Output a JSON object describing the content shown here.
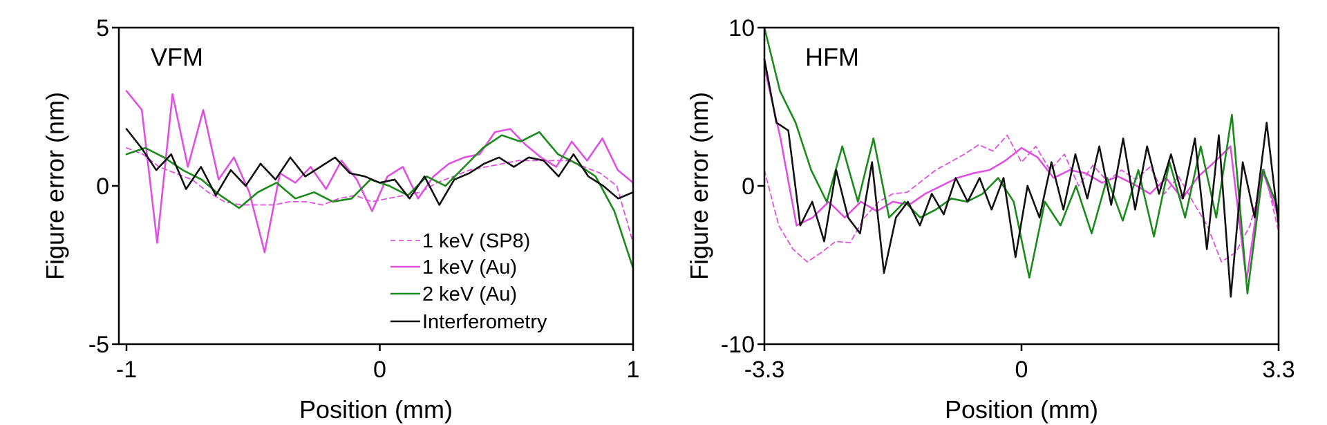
{
  "chart_data": [
    {
      "type": "line",
      "panel_label": "VFM",
      "xlabel": "Position (mm)",
      "ylabel": "Figure error (nm)",
      "xlim": [
        -1.03,
        1.0
      ],
      "ylim": [
        -5,
        5
      ],
      "xticks": [
        {
          "value": -1,
          "label": "-1"
        },
        {
          "value": 0,
          "label": "0"
        },
        {
          "value": 1,
          "label": "1"
        }
      ],
      "yticks": [
        {
          "value": 5,
          "label": "5"
        },
        {
          "value": 0,
          "label": "0"
        },
        {
          "value": -5,
          "label": "-5"
        }
      ],
      "legend_position": "bottom-right",
      "series": [
        {
          "name": "1 keV (SP8)",
          "color": "#e050e0",
          "dash": true,
          "width": 1.8,
          "x_start": -1.0,
          "x_end": 1.0,
          "values": [
            1.2,
            1.0,
            0.6,
            0.4,
            0.2,
            -0.2,
            -0.5,
            -0.6,
            -0.6,
            -0.6,
            -0.5,
            -0.5,
            -0.6,
            -0.4,
            -0.3,
            -0.5,
            -0.4,
            -0.3,
            -0.2,
            0.1,
            0.3,
            0.5,
            0.6,
            0.7,
            0.8,
            0.8,
            0.8,
            0.8,
            0.6,
            0.4,
            0.0,
            -1.8
          ]
        },
        {
          "name": "1 keV (Au)",
          "color": "#e050e0",
          "dash": false,
          "width": 2.6,
          "x_start": -1.0,
          "x_end": 1.0,
          "values": [
            3.0,
            2.4,
            -1.8,
            2.9,
            0.6,
            2.4,
            0.2,
            0.9,
            -0.2,
            -2.1,
            0.4,
            0.1,
            0.6,
            -0.1,
            0.8,
            0.2,
            -0.8,
            0.3,
            0.6,
            -0.4,
            0.3,
            0.7,
            0.9,
            1.0,
            1.7,
            1.8,
            1.3,
            0.9,
            0.6,
            1.4,
            0.8,
            1.5,
            0.5,
            0.1
          ]
        },
        {
          "name": "2 keV (Au)",
          "color": "#1a8a1a",
          "dash": false,
          "width": 2.6,
          "x_start": -1.0,
          "x_end": 1.0,
          "values": [
            1.0,
            1.2,
            0.9,
            0.5,
            0.2,
            -0.3,
            -0.7,
            -0.2,
            0.1,
            -0.4,
            -0.2,
            -0.5,
            -0.4,
            0.2,
            0.0,
            -0.3,
            0.3,
            0.0,
            0.6,
            1.2,
            1.6,
            1.4,
            1.7,
            1.0,
            0.7,
            0.3,
            -0.8,
            -2.6
          ]
        },
        {
          "name": "Interferometry",
          "color": "#111111",
          "dash": false,
          "width": 2.6,
          "x_start": -1.0,
          "x_end": 1.0,
          "values": [
            1.8,
            1.2,
            0.5,
            1.0,
            -0.1,
            0.6,
            -0.3,
            0.5,
            0.0,
            0.7,
            0.2,
            0.9,
            0.3,
            0.6,
            0.9,
            0.4,
            0.3,
            0.1,
            0.2,
            -0.4,
            0.3,
            -0.6,
            0.2,
            0.4,
            0.7,
            0.9,
            0.6,
            0.9,
            0.8,
            0.3,
            1.0,
            0.3,
            0.0,
            -0.4,
            -0.2
          ]
        }
      ]
    },
    {
      "type": "line",
      "panel_label": "HFM",
      "xlabel": "Position (mm)",
      "ylabel": "Figure error (nm)",
      "xlim": [
        -3.3,
        3.3
      ],
      "ylim": [
        -10,
        10
      ],
      "xticks": [
        {
          "value": -3.3,
          "label": "-3.3"
        },
        {
          "value": 0,
          "label": "0"
        },
        {
          "value": 3.3,
          "label": "3.3"
        }
      ],
      "yticks": [
        {
          "value": 10,
          "label": "10"
        },
        {
          "value": 0,
          "label": "0"
        },
        {
          "value": -10,
          "label": "-10"
        }
      ],
      "series": [
        {
          "name": "1 keV (SP8)",
          "color": "#e050e0",
          "dash": true,
          "width": 1.8,
          "x_start": -3.3,
          "x_end": 3.3,
          "values": [
            1.0,
            -2.5,
            -4.0,
            -4.8,
            -4.2,
            -3.5,
            -3.6,
            -2.0,
            -1.0,
            -0.5,
            -0.4,
            0.3,
            1.0,
            1.5,
            2.0,
            2.6,
            2.2,
            3.2,
            1.5,
            2.5,
            1.0,
            2.0,
            0.0,
            1.3,
            0.3,
            1.0,
            0.4,
            1.2,
            -0.5,
            0.6,
            -1.0,
            -2.5,
            -4.8,
            -4.2,
            -2.5,
            1.0,
            -2.9
          ]
        },
        {
          "name": "1 keV (Au)",
          "color": "#e050e0",
          "dash": false,
          "width": 2.6,
          "x_start": -3.3,
          "x_end": 3.3,
          "values": [
            7.5,
            3.0,
            -2.5,
            -2.0,
            -1.0,
            -2.0,
            -1.0,
            -1.6,
            -1.0,
            -1.2,
            -0.5,
            0.0,
            0.5,
            0.8,
            1.0,
            1.6,
            2.4,
            1.8,
            0.5,
            1.0,
            0.8,
            0.2,
            0.6,
            0.1,
            -0.5,
            0.5,
            -0.8,
            0.6,
            1.5,
            2.5,
            -6.0,
            1.0,
            -2.0
          ]
        },
        {
          "name": "2 keV (Au)",
          "color": "#1a8a1a",
          "dash": false,
          "width": 2.6,
          "x_start": -3.3,
          "x_end": 3.3,
          "values": [
            10.0,
            6.0,
            4.0,
            1.0,
            -1.0,
            2.5,
            -1.0,
            3.0,
            -2.0,
            -1.0,
            -2.0,
            -1.5,
            -0.8,
            -1.0,
            -0.5,
            0.5,
            -1.0,
            -5.8,
            -1.0,
            -2.5,
            0.0,
            -3.0,
            0.5,
            -2.2,
            1.0,
            -3.2,
            1.5,
            -2.0,
            2.5,
            -2.0,
            4.5,
            -6.8,
            1.0,
            -1.5
          ]
        },
        {
          "name": "Interferometry",
          "color": "#111111",
          "dash": false,
          "width": 2.6,
          "x_start": -3.3,
          "x_end": 3.3,
          "values": [
            8.0,
            4.0,
            3.5,
            -2.5,
            -1.0,
            -3.5,
            1.0,
            -2.0,
            -3.0,
            1.5,
            -5.5,
            -2.0,
            -1.0,
            -2.5,
            -0.5,
            -1.8,
            0.5,
            -1.0,
            0.5,
            -1.5,
            0.5,
            -4.5,
            0.0,
            -2.0,
            1.5,
            -1.5,
            2.0,
            -0.8,
            2.5,
            -1.2,
            3.0,
            -1.5,
            2.5,
            -0.5,
            2.0,
            -0.8,
            3.0,
            -4.0,
            3.2,
            -7.0,
            1.5,
            -2.0,
            4.0,
            -2.5
          ]
        }
      ]
    }
  ]
}
